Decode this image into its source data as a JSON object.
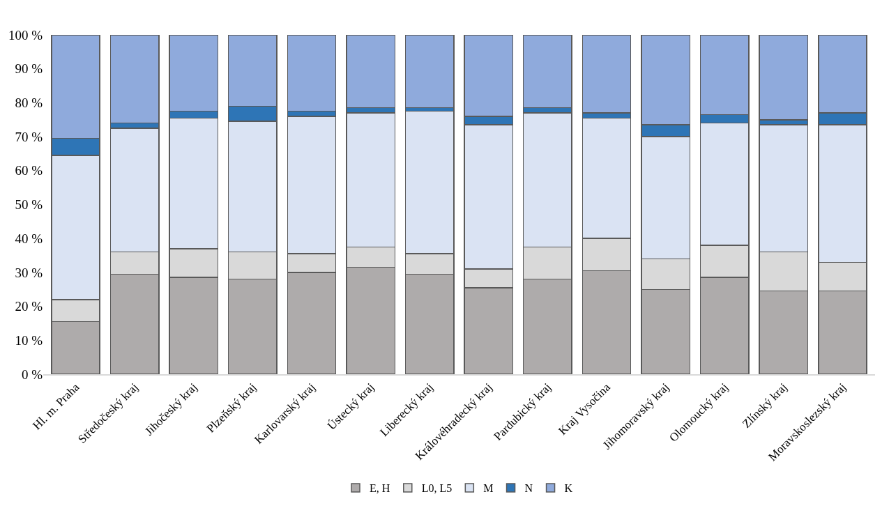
{
  "chart_data": {
    "type": "bar",
    "stacked": true,
    "categories": [
      "Hl. m. Praha",
      "Středočeský kraj",
      "Jihočeský kraj",
      "Plzeňský kraj",
      "Karlovarský kraj",
      "Ústecký kraj",
      "Liberecký kraj",
      "Královéhradecký kraj",
      "Pardubický kraj",
      "Kraj Vysočina",
      "Jihomoravský kraj",
      "Olomoucký kraj",
      "Zlínský kraj",
      "Moravskoslezský kraj"
    ],
    "series": [
      {
        "name": "E, H",
        "color": "#aeabab",
        "values": [
          15.5,
          29.5,
          28.5,
          28,
          30,
          31.5,
          29.5,
          25.5,
          28,
          30.5,
          25,
          28.5,
          24.5,
          24.5
        ]
      },
      {
        "name": "L0, L5",
        "color": "#d9d9d9",
        "values": [
          6.5,
          6.5,
          8.5,
          8,
          5.5,
          6,
          6,
          5.5,
          9.5,
          9.5,
          9,
          9.5,
          11.5,
          8.5
        ]
      },
      {
        "name": "M",
        "color": "#dae3f3",
        "values": [
          42.5,
          36.5,
          38.5,
          38.5,
          40.5,
          39.5,
          42,
          42.5,
          39.5,
          35.5,
          36,
          36,
          37.5,
          40.5
        ]
      },
      {
        "name": "N",
        "color": "#2e75b6",
        "values": [
          5,
          1.5,
          2,
          4.5,
          1.5,
          1.5,
          1,
          2.5,
          1.5,
          1.5,
          3.5,
          2.5,
          1.5,
          3.5
        ]
      },
      {
        "name": "K",
        "color": "#8faadc",
        "values": [
          30.5,
          26,
          22.5,
          21,
          22.5,
          21.5,
          21.5,
          24,
          21.5,
          23,
          26.5,
          23.5,
          25,
          23
        ]
      }
    ],
    "ylim": [
      0,
      100
    ],
    "yticks": [
      {
        "value": 0,
        "label": "0 %"
      },
      {
        "value": 10,
        "label": "10 %"
      },
      {
        "value": 20,
        "label": "20 %"
      },
      {
        "value": 30,
        "label": "30 %"
      },
      {
        "value": 40,
        "label": "40 %"
      },
      {
        "value": 50,
        "label": "50 %"
      },
      {
        "value": 60,
        "label": "60 %"
      },
      {
        "value": 70,
        "label": "70 %"
      },
      {
        "value": 80,
        "label": "80 %"
      },
      {
        "value": 90,
        "label": "90 %"
      },
      {
        "value": 100,
        "label": "100 %"
      }
    ],
    "legend": "bottom",
    "grid": false
  }
}
